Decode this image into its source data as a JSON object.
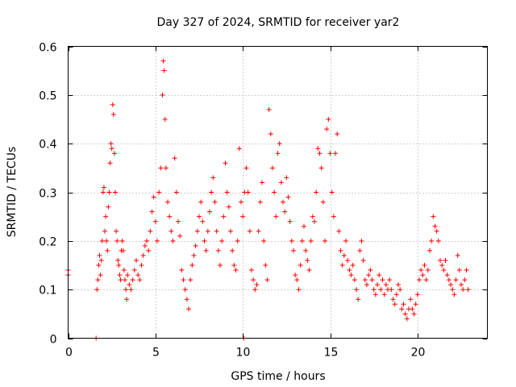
{
  "chart_data": {
    "type": "scatter",
    "title": "Day 327 of 2024, SRMTID for receiver yar2",
    "xlabel": "GPS time / hours",
    "ylabel": "SRMTID / TECUs",
    "xlim": [
      0,
      24
    ],
    "ylim": [
      0,
      0.6
    ],
    "xticks": [
      0,
      5,
      10,
      15,
      20
    ],
    "xtick_labels": [
      "0",
      "5",
      "10",
      "15",
      "20"
    ],
    "yticks": [
      0,
      0.1,
      0.2,
      0.3,
      0.4,
      0.5,
      0.6
    ],
    "ytick_labels": [
      "0",
      "0.1",
      "0.2",
      "0.3",
      "0.4",
      "0.5",
      "0.6"
    ],
    "grid": true,
    "marker": "+",
    "color": "#ff0000",
    "series": [
      {
        "name": "yar2",
        "x": [
          0.0,
          0.0,
          1.6,
          1.65,
          1.7,
          1.75,
          1.8,
          1.85,
          1.9,
          1.95,
          2.0,
          2.05,
          2.1,
          2.15,
          2.2,
          2.25,
          2.3,
          2.35,
          2.4,
          2.45,
          2.5,
          2.55,
          2.6,
          2.65,
          2.7,
          2.75,
          2.8,
          2.85,
          2.9,
          2.95,
          3.0,
          3.05,
          3.1,
          3.15,
          3.2,
          3.25,
          3.3,
          3.35,
          3.4,
          3.5,
          3.6,
          3.7,
          3.8,
          3.9,
          4.0,
          4.1,
          4.2,
          4.3,
          4.4,
          4.5,
          4.6,
          4.7,
          4.8,
          4.9,
          5.0,
          5.1,
          5.2,
          5.3,
          5.4,
          5.45,
          5.5,
          5.55,
          5.6,
          5.7,
          5.8,
          5.9,
          6.0,
          6.1,
          6.2,
          6.3,
          6.4,
          6.5,
          6.6,
          6.7,
          6.8,
          6.9,
          7.0,
          7.1,
          7.2,
          7.3,
          7.4,
          7.5,
          7.6,
          7.7,
          7.8,
          7.9,
          8.0,
          8.1,
          8.2,
          8.3,
          8.4,
          8.5,
          8.6,
          8.7,
          8.8,
          8.9,
          9.0,
          9.1,
          9.2,
          9.3,
          9.4,
          9.5,
          9.6,
          9.7,
          9.8,
          9.9,
          10.0,
          10.05,
          10.1,
          10.2,
          10.3,
          10.4,
          10.5,
          10.6,
          10.7,
          10.8,
          10.9,
          11.0,
          11.1,
          11.2,
          11.3,
          11.4,
          11.5,
          11.6,
          11.7,
          11.8,
          11.9,
          12.0,
          12.1,
          12.2,
          12.3,
          12.4,
          12.5,
          12.6,
          12.7,
          12.8,
          12.9,
          13.0,
          13.1,
          13.2,
          13.3,
          13.4,
          13.5,
          13.6,
          13.7,
          13.8,
          13.9,
          14.0,
          14.1,
          14.2,
          14.3,
          14.4,
          14.5,
          14.6,
          14.7,
          14.8,
          14.9,
          15.0,
          15.1,
          15.2,
          15.3,
          15.4,
          15.5,
          15.6,
          15.7,
          15.8,
          15.9,
          16.0,
          16.1,
          16.2,
          16.3,
          16.4,
          16.5,
          16.6,
          16.7,
          16.8,
          16.9,
          17.0,
          17.1,
          17.2,
          17.3,
          17.4,
          17.5,
          17.6,
          17.7,
          17.8,
          17.9,
          18.0,
          18.1,
          18.2,
          18.3,
          18.4,
          18.5,
          18.6,
          18.7,
          18.8,
          18.9,
          19.0,
          19.1,
          19.2,
          19.3,
          19.4,
          19.5,
          19.6,
          19.7,
          19.8,
          19.9,
          20.0,
          20.1,
          20.2,
          20.3,
          20.4,
          20.5,
          20.6,
          20.7,
          20.8,
          20.9,
          21.0,
          21.1,
          21.2,
          21.3,
          21.4,
          21.5,
          21.6,
          21.7,
          21.8,
          21.9,
          22.0,
          22.1,
          22.2,
          22.3,
          22.4,
          22.5,
          22.6,
          22.7,
          22.8,
          22.9
        ],
        "y": [
          0.14,
          0.13,
          0.0,
          0.1,
          0.12,
          0.15,
          0.17,
          0.13,
          0.16,
          0.2,
          0.3,
          0.31,
          0.22,
          0.25,
          0.2,
          0.18,
          0.27,
          0.3,
          0.36,
          0.4,
          0.39,
          0.48,
          0.46,
          0.38,
          0.3,
          0.22,
          0.2,
          0.16,
          0.15,
          0.13,
          0.12,
          0.18,
          0.2,
          0.18,
          0.14,
          0.12,
          0.1,
          0.08,
          0.13,
          0.11,
          0.1,
          0.12,
          0.14,
          0.16,
          0.13,
          0.12,
          0.15,
          0.17,
          0.19,
          0.2,
          0.18,
          0.22,
          0.26,
          0.29,
          0.24,
          0.2,
          0.3,
          0.35,
          0.5,
          0.57,
          0.55,
          0.45,
          0.35,
          0.28,
          0.25,
          0.22,
          0.2,
          0.37,
          0.3,
          0.24,
          0.21,
          0.14,
          0.12,
          0.1,
          0.08,
          0.06,
          0.12,
          0.15,
          0.17,
          0.19,
          0.22,
          0.25,
          0.28,
          0.24,
          0.2,
          0.18,
          0.22,
          0.26,
          0.3,
          0.33,
          0.28,
          0.22,
          0.18,
          0.15,
          0.2,
          0.25,
          0.36,
          0.3,
          0.27,
          0.22,
          0.18,
          0.15,
          0.14,
          0.2,
          0.39,
          0.28,
          0.25,
          0.0,
          0.3,
          0.35,
          0.3,
          0.22,
          0.14,
          0.12,
          0.1,
          0.11,
          0.22,
          0.28,
          0.32,
          0.2,
          0.15,
          0.12,
          0.47,
          0.42,
          0.35,
          0.3,
          0.25,
          0.38,
          0.4,
          0.32,
          0.28,
          0.26,
          0.33,
          0.29,
          0.24,
          0.2,
          0.18,
          0.13,
          0.12,
          0.1,
          0.15,
          0.2,
          0.23,
          0.18,
          0.16,
          0.14,
          0.2,
          0.25,
          0.24,
          0.3,
          0.39,
          0.38,
          0.35,
          0.28,
          0.2,
          0.43,
          0.45,
          0.38,
          0.3,
          0.25,
          0.38,
          0.42,
          0.22,
          0.18,
          0.15,
          0.17,
          0.2,
          0.16,
          0.14,
          0.13,
          0.15,
          0.12,
          0.1,
          0.08,
          0.18,
          0.2,
          0.16,
          0.12,
          0.11,
          0.13,
          0.14,
          0.12,
          0.1,
          0.09,
          0.11,
          0.13,
          0.1,
          0.12,
          0.09,
          0.11,
          0.1,
          0.12,
          0.1,
          0.08,
          0.07,
          0.09,
          0.11,
          0.1,
          0.06,
          0.07,
          0.05,
          0.04,
          0.06,
          0.08,
          0.06,
          0.05,
          0.07,
          0.09,
          0.12,
          0.14,
          0.13,
          0.15,
          0.12,
          0.14,
          0.18,
          0.2,
          0.25,
          0.23,
          0.22,
          0.2,
          0.16,
          0.15,
          0.14,
          0.16,
          0.13,
          0.12,
          0.11,
          0.1,
          0.09,
          0.12,
          0.17,
          0.14,
          0.11,
          0.1,
          0.12,
          0.14,
          0.1
        ]
      }
    ]
  }
}
